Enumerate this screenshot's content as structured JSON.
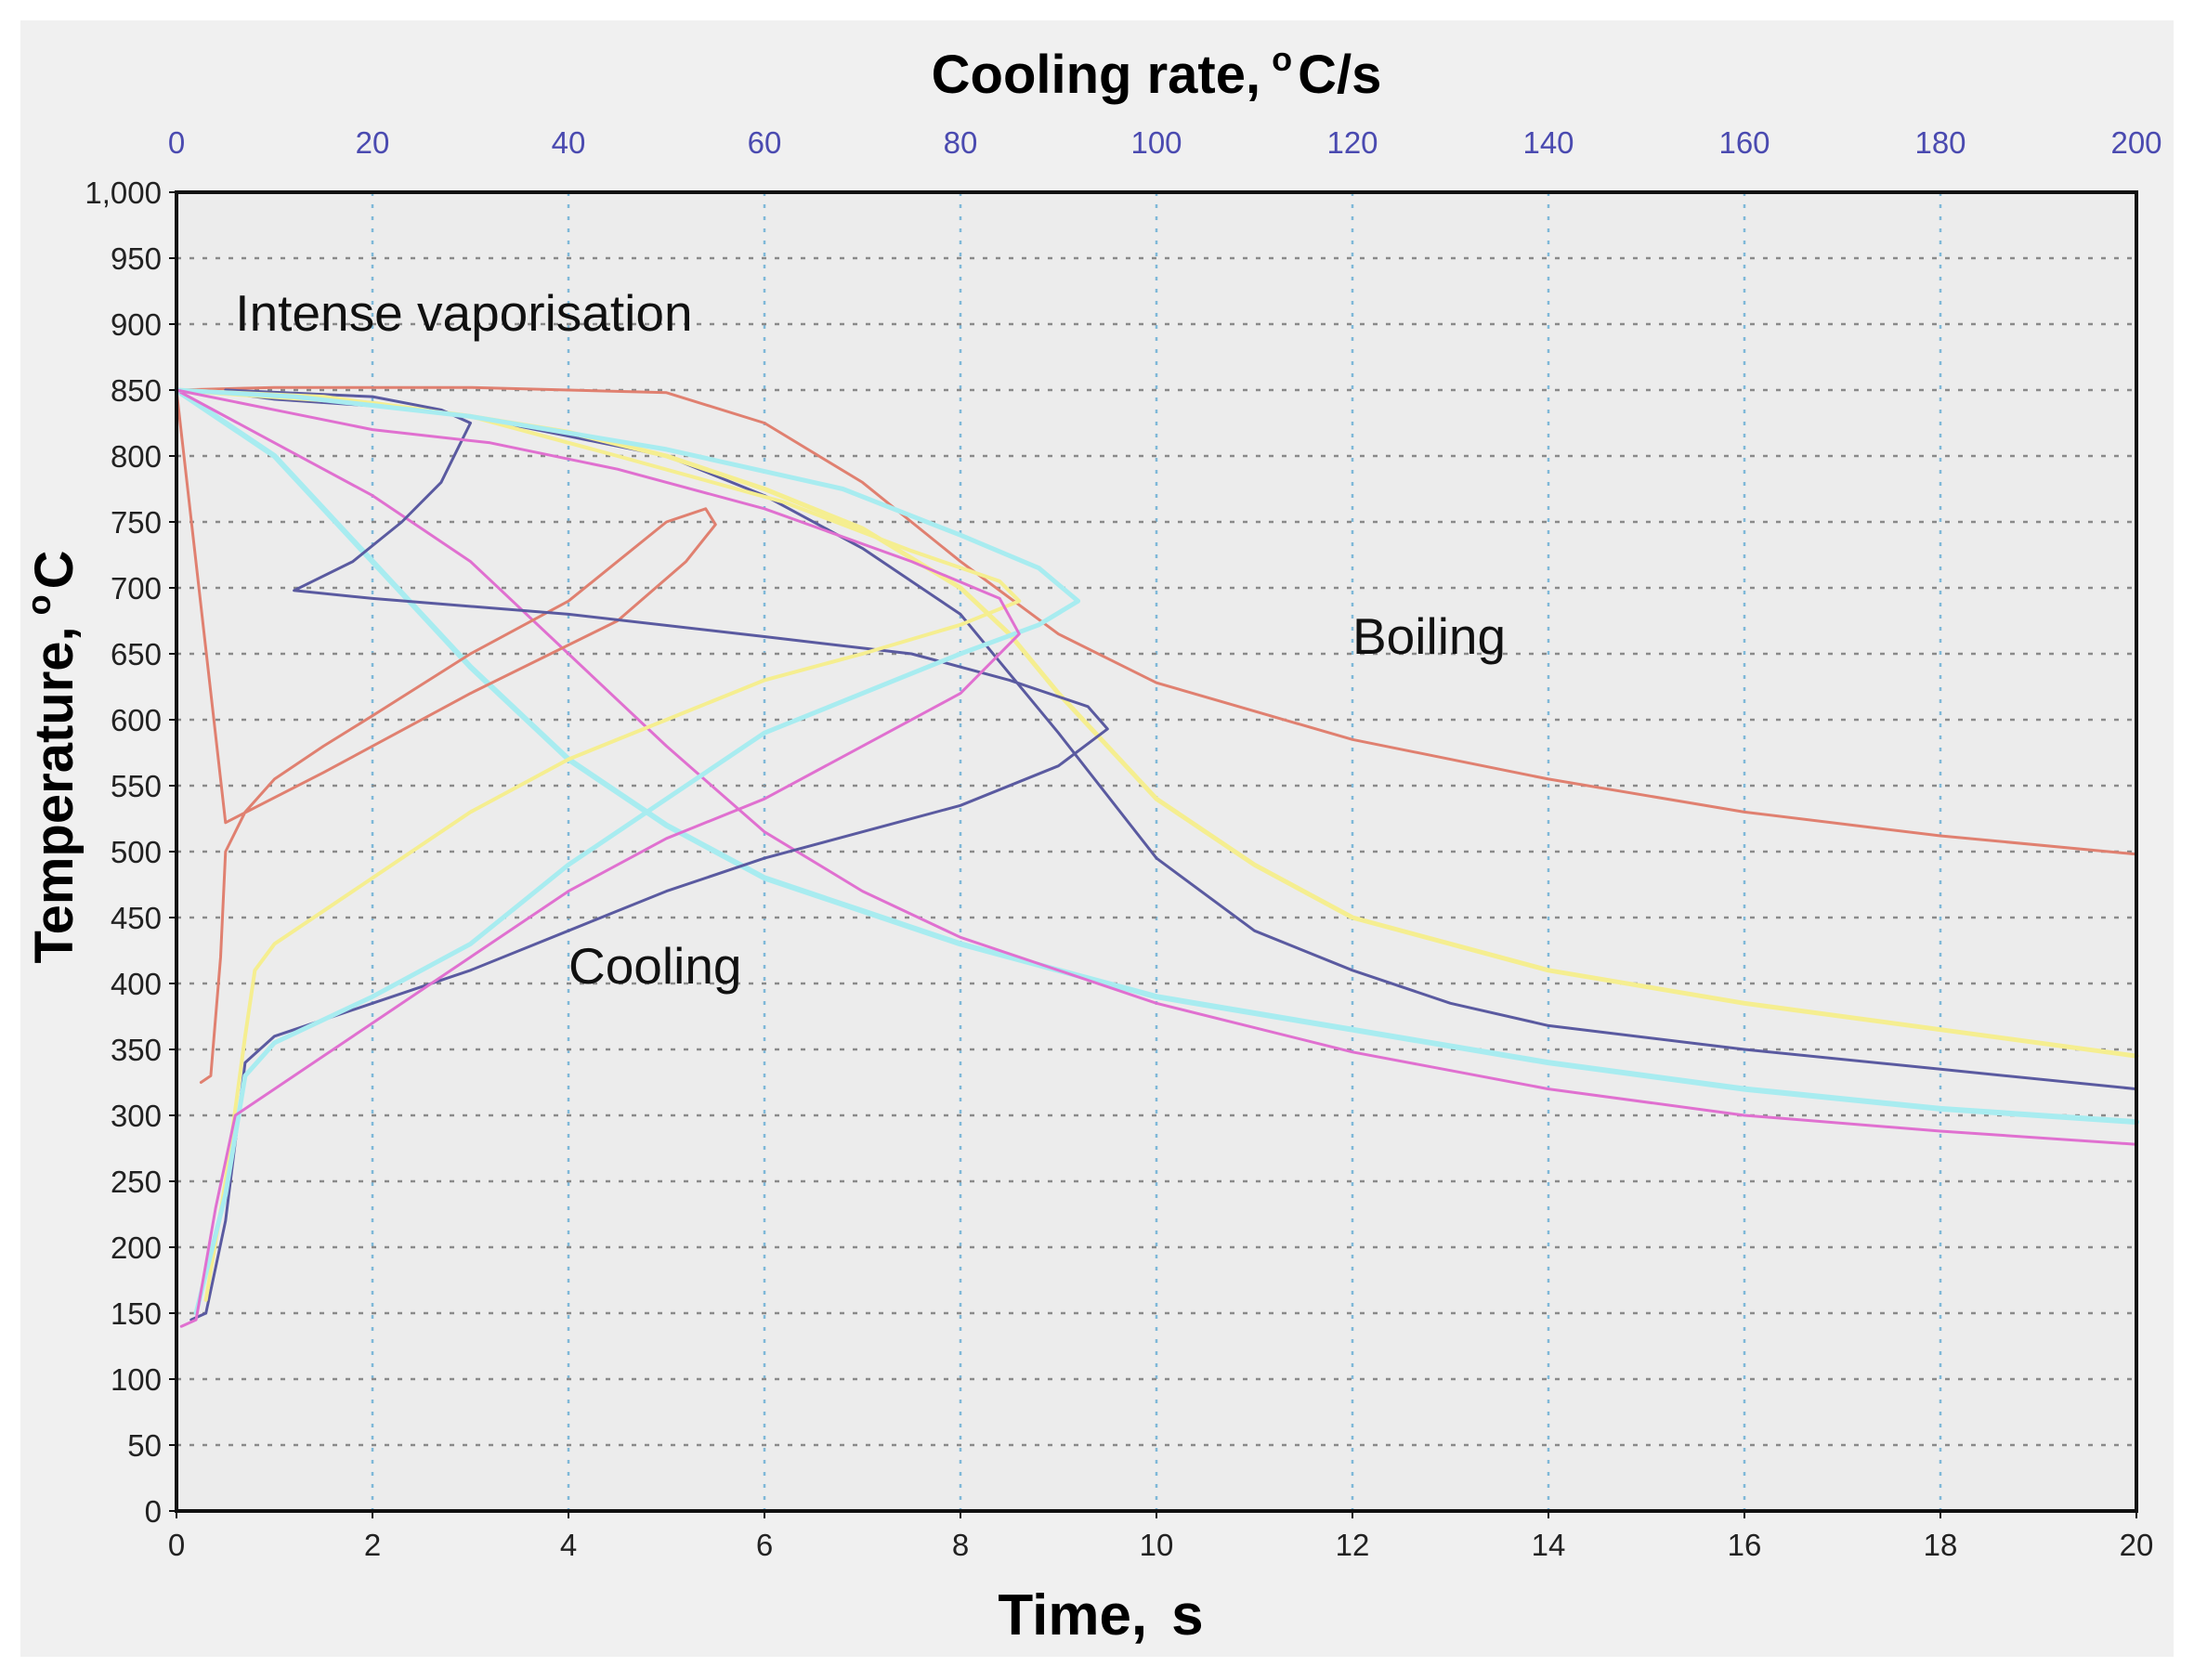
{
  "chart_data": {
    "type": "line",
    "title": "",
    "x_axis_bottom": {
      "label_main": "Time,",
      "label_unit": "s",
      "range": [
        0,
        20
      ],
      "ticks": [
        "0",
        "2",
        "4",
        "6",
        "8",
        "10",
        "12",
        "14",
        "16",
        "18",
        "20"
      ]
    },
    "x_axis_top": {
      "label_main": "Cooling rate,",
      "label_sup": "o",
      "label_unit": "C/s",
      "range": [
        0,
        200
      ],
      "ticks": [
        "0",
        "20",
        "40",
        "60",
        "80",
        "100",
        "120",
        "140",
        "160",
        "180",
        "200"
      ]
    },
    "y_axis": {
      "label_main": "Temperature,",
      "label_sup": "o",
      "label_unit": "C",
      "range": [
        0,
        1000
      ],
      "ticks": [
        "0",
        "50",
        "100",
        "150",
        "200",
        "250",
        "300",
        "350",
        "400",
        "450",
        "500",
        "550",
        "600",
        "650",
        "700",
        "750",
        "800",
        "850",
        "900",
        "950",
        "1,000"
      ]
    },
    "grid": true,
    "annotations": [
      {
        "text": "Intense vaporisation",
        "x": 0.6,
        "y": 895
      },
      {
        "text": "Boiling",
        "x": 12.0,
        "y": 650
      },
      {
        "text": "Cooling",
        "x": 4.0,
        "y": 400
      }
    ],
    "series": [
      {
        "name": "Temperature vs time (red)",
        "axis": "time",
        "color": "#e08070",
        "width": 3,
        "points": [
          [
            0,
            850
          ],
          [
            1,
            852
          ],
          [
            3,
            852
          ],
          [
            5,
            848
          ],
          [
            6,
            825
          ],
          [
            7,
            780
          ],
          [
            8,
            720
          ],
          [
            9,
            665
          ],
          [
            10,
            628
          ],
          [
            12,
            585
          ],
          [
            14,
            555
          ],
          [
            16,
            530
          ],
          [
            18,
            512
          ],
          [
            20,
            498
          ]
        ]
      },
      {
        "name": "Temperature vs time (dark blue)",
        "axis": "time",
        "color": "#5a5aa0",
        "width": 3,
        "points": [
          [
            0,
            850
          ],
          [
            0.5,
            848
          ],
          [
            1,
            843
          ],
          [
            2,
            838
          ],
          [
            3,
            830
          ],
          [
            4,
            815
          ],
          [
            5,
            800
          ],
          [
            6,
            770
          ],
          [
            7,
            730
          ],
          [
            8,
            680
          ],
          [
            9,
            590
          ],
          [
            10,
            495
          ],
          [
            11,
            440
          ],
          [
            12,
            410
          ],
          [
            13,
            385
          ],
          [
            14,
            368
          ],
          [
            16,
            350
          ],
          [
            18,
            335
          ],
          [
            20,
            320
          ]
        ]
      },
      {
        "name": "Temperature vs time (yellow)",
        "axis": "time",
        "color": "#f5ee90",
        "width": 5,
        "points": [
          [
            0,
            850
          ],
          [
            1,
            845
          ],
          [
            2,
            840
          ],
          [
            3,
            830
          ],
          [
            4,
            818
          ],
          [
            5,
            800
          ],
          [
            6,
            775
          ],
          [
            7,
            745
          ],
          [
            8,
            700
          ],
          [
            8.5,
            665
          ],
          [
            9,
            620
          ],
          [
            9.5,
            580
          ],
          [
            10,
            540
          ],
          [
            11,
            490
          ],
          [
            12,
            450
          ],
          [
            14,
            410
          ],
          [
            16,
            385
          ],
          [
            18,
            365
          ],
          [
            20,
            345
          ]
        ]
      },
      {
        "name": "Temperature vs time (cyan)",
        "axis": "time",
        "color": "#a8ecf0",
        "width": 6,
        "points": [
          [
            0,
            850
          ],
          [
            1,
            800
          ],
          [
            2,
            720
          ],
          [
            3,
            640
          ],
          [
            4,
            570
          ],
          [
            5,
            520
          ],
          [
            6,
            480
          ],
          [
            7,
            455
          ],
          [
            8,
            430
          ],
          [
            10,
            390
          ],
          [
            12,
            365
          ],
          [
            14,
            340
          ],
          [
            16,
            320
          ],
          [
            18,
            305
          ],
          [
            20,
            295
          ]
        ]
      },
      {
        "name": "Temperature vs time (magenta)",
        "axis": "time",
        "color": "#e070d0",
        "width": 3,
        "points": [
          [
            0,
            850
          ],
          [
            1,
            810
          ],
          [
            2,
            770
          ],
          [
            3,
            720
          ],
          [
            4,
            650
          ],
          [
            5,
            580
          ],
          [
            6,
            515
          ],
          [
            7,
            470
          ],
          [
            8,
            435
          ],
          [
            10,
            385
          ],
          [
            12,
            348
          ],
          [
            14,
            320
          ],
          [
            16,
            300
          ],
          [
            18,
            288
          ],
          [
            20,
            278
          ]
        ]
      },
      {
        "name": "Cooling rate (red)",
        "axis": "rate",
        "color": "#e08070",
        "width": 3,
        "points": [
          [
            2.5,
            325
          ],
          [
            3.5,
            330
          ],
          [
            4.5,
            420
          ],
          [
            5,
            500
          ],
          [
            7,
            530
          ],
          [
            10,
            555
          ],
          [
            15,
            580
          ],
          [
            20,
            603
          ],
          [
            30,
            650
          ],
          [
            40,
            690
          ],
          [
            45,
            720
          ],
          [
            50,
            750
          ],
          [
            54,
            760
          ],
          [
            55,
            748
          ],
          [
            52,
            720
          ],
          [
            45,
            675
          ],
          [
            30,
            620
          ],
          [
            15,
            560
          ],
          [
            5,
            522
          ],
          [
            0,
            850
          ]
        ]
      },
      {
        "name": "Cooling rate (dark blue)",
        "axis": "rate",
        "color": "#5a5aa0",
        "width": 3,
        "points": [
          [
            1.5,
            145
          ],
          [
            3,
            150
          ],
          [
            5,
            220
          ],
          [
            7,
            340
          ],
          [
            10,
            360
          ],
          [
            20,
            385
          ],
          [
            30,
            410
          ],
          [
            40,
            440
          ],
          [
            50,
            470
          ],
          [
            60,
            495
          ],
          [
            70,
            515
          ],
          [
            80,
            535
          ],
          [
            90,
            565
          ],
          [
            95,
            593
          ],
          [
            93,
            610
          ],
          [
            85,
            630
          ],
          [
            75,
            650
          ],
          [
            60,
            663
          ],
          [
            40,
            680
          ],
          [
            20,
            692
          ],
          [
            12,
            698
          ],
          [
            18,
            720
          ],
          [
            23,
            750
          ],
          [
            27,
            780
          ],
          [
            29,
            810
          ],
          [
            30,
            825
          ],
          [
            27,
            835
          ],
          [
            20,
            845
          ],
          [
            5,
            850
          ]
        ]
      },
      {
        "name": "Cooling rate (yellow)",
        "axis": "rate",
        "color": "#f5ee90",
        "width": 4,
        "points": [
          [
            3,
            160
          ],
          [
            5,
            250
          ],
          [
            7,
            360
          ],
          [
            8,
            410
          ],
          [
            10,
            430
          ],
          [
            20,
            480
          ],
          [
            30,
            530
          ],
          [
            40,
            570
          ],
          [
            50,
            600
          ],
          [
            60,
            630
          ],
          [
            70,
            650
          ],
          [
            80,
            672
          ],
          [
            86,
            690
          ],
          [
            84,
            705
          ],
          [
            75,
            728
          ],
          [
            62,
            765
          ],
          [
            45,
            800
          ],
          [
            30,
            830
          ],
          [
            15,
            845
          ],
          [
            0,
            850
          ]
        ]
      },
      {
        "name": "Cooling rate (cyan)",
        "axis": "rate",
        "color": "#a8ecf0",
        "width": 5,
        "points": [
          [
            2,
            150
          ],
          [
            5,
            240
          ],
          [
            7,
            330
          ],
          [
            10,
            355
          ],
          [
            20,
            390
          ],
          [
            30,
            430
          ],
          [
            40,
            490
          ],
          [
            50,
            540
          ],
          [
            60,
            590
          ],
          [
            70,
            620
          ],
          [
            80,
            650
          ],
          [
            88,
            672
          ],
          [
            92,
            690
          ],
          [
            88,
            715
          ],
          [
            80,
            740
          ],
          [
            68,
            775
          ],
          [
            50,
            805
          ],
          [
            30,
            830
          ],
          [
            12,
            845
          ],
          [
            0,
            850
          ]
        ]
      },
      {
        "name": "Cooling rate (magenta)",
        "axis": "rate",
        "color": "#e070d0",
        "width": 3,
        "points": [
          [
            0.5,
            140
          ],
          [
            2,
            145
          ],
          [
            4,
            230
          ],
          [
            6,
            300
          ],
          [
            10,
            320
          ],
          [
            20,
            370
          ],
          [
            30,
            420
          ],
          [
            40,
            470
          ],
          [
            50,
            510
          ],
          [
            60,
            540
          ],
          [
            70,
            580
          ],
          [
            80,
            620
          ],
          [
            86,
            665
          ],
          [
            84,
            692
          ],
          [
            75,
            720
          ],
          [
            60,
            760
          ],
          [
            45,
            790
          ],
          [
            32,
            810
          ],
          [
            20,
            820
          ],
          [
            10,
            835
          ],
          [
            0,
            850
          ]
        ]
      }
    ]
  }
}
